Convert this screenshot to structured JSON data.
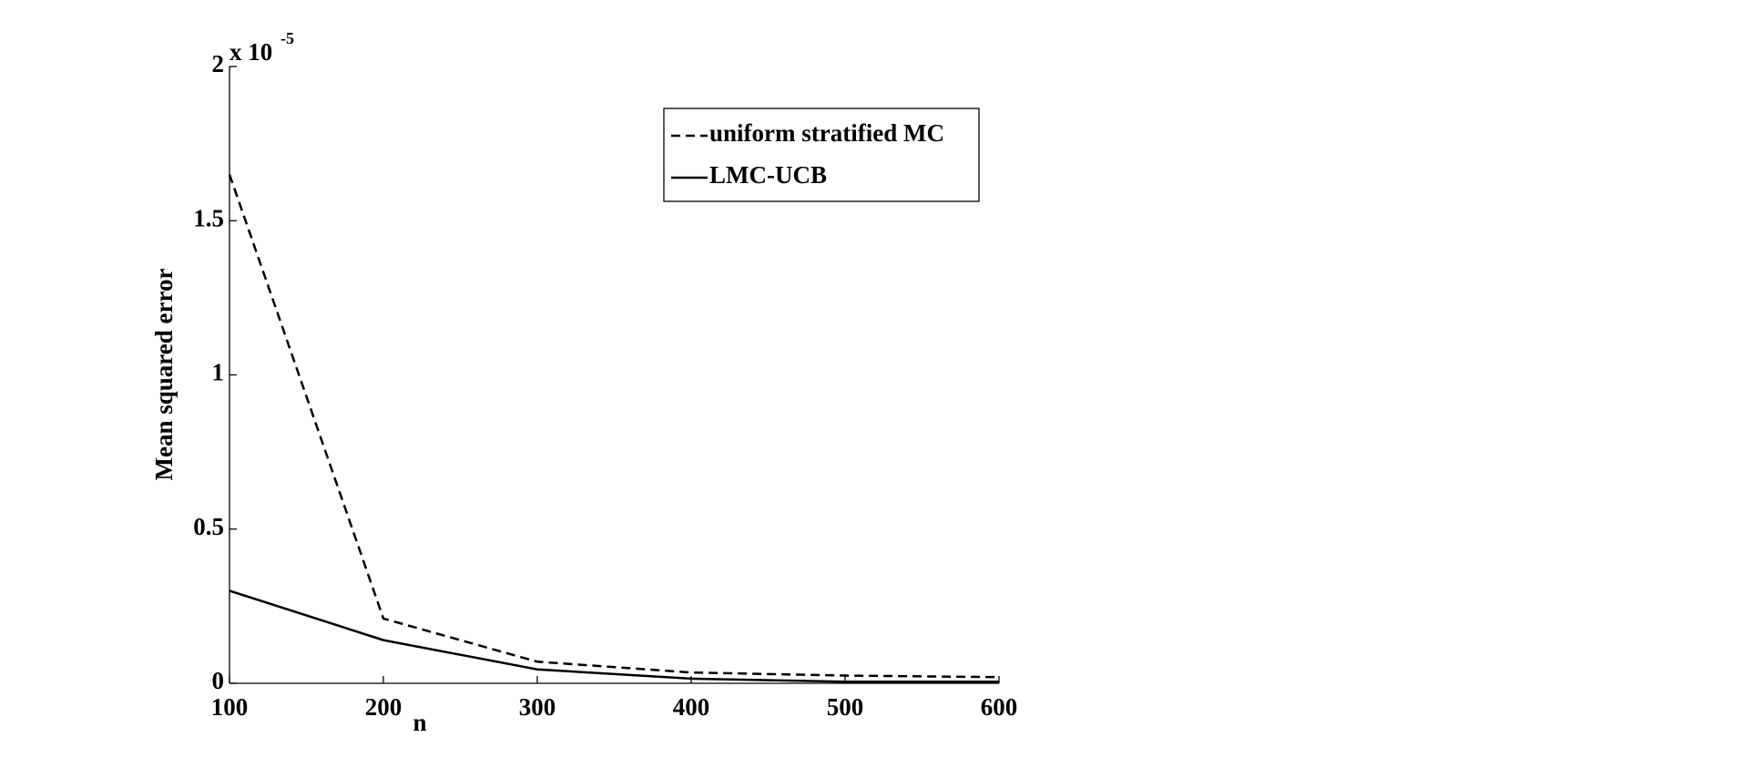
{
  "chart_data": {
    "type": "line",
    "x": [
      100,
      200,
      300,
      400,
      500,
      600
    ],
    "series": [
      {
        "name": "uniform stratified MC",
        "color": "#000000",
        "dash": true,
        "values": [
          1.65,
          0.21,
          0.07,
          0.035,
          0.025,
          0.02
        ]
      },
      {
        "name": "LMC-UCB",
        "color": "#000000",
        "dash": false,
        "values": [
          0.3,
          0.14,
          0.045,
          0.015,
          0.005,
          0.005
        ]
      }
    ],
    "xlabel": "n",
    "ylabel": "Mean squared error",
    "y_multiplier": "x 10",
    "y_multiplier_exponent": "-5",
    "xlim": [
      100,
      600
    ],
    "xticks": [
      100,
      200,
      300,
      400,
      500,
      600
    ],
    "ylim": [
      0,
      2
    ],
    "yticks": [
      0,
      0.5,
      1,
      1.5,
      2
    ],
    "legend": "top-center"
  }
}
